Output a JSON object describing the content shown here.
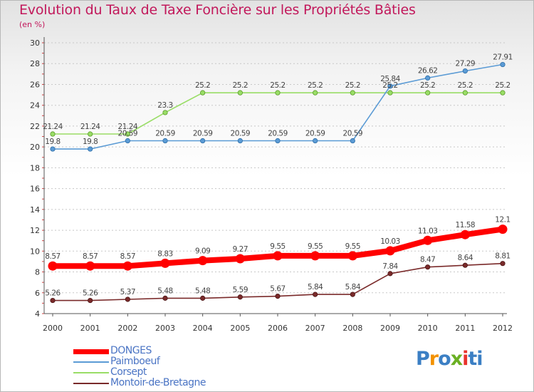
{
  "header": {
    "title": "Evolution du Taux de Taxe Foncière sur les Propriétés Bâties",
    "subtitle": "(en %)"
  },
  "brand": {
    "text": "Proxiti"
  },
  "chart_data": {
    "type": "line",
    "title": "Evolution du Taux de Taxe Foncière sur les Propriétés Bâties",
    "ylabel": "(en %)",
    "xlabel": "",
    "x": [
      "2000",
      "2001",
      "2002",
      "2003",
      "2004",
      "2005",
      "2006",
      "2007",
      "2008",
      "2009",
      "2010",
      "2011",
      "2012"
    ],
    "ylim": [
      4,
      30
    ],
    "yticks": [
      4,
      6,
      8,
      10,
      12,
      14,
      16,
      18,
      20,
      22,
      24,
      26,
      28,
      30
    ],
    "grid": "horizontal-dashed",
    "legend_position": "bottom-left",
    "series": [
      {
        "name": "DONGES",
        "color": "#ff0000",
        "values": [
          8.57,
          8.57,
          8.57,
          8.83,
          9.09,
          9.27,
          9.55,
          9.55,
          9.55,
          10.03,
          11.03,
          11.58,
          12.1
        ],
        "labels": [
          "8.57",
          "8.57",
          "8.57",
          "8.83",
          "9.09",
          "9.27",
          "9.55",
          "9.55",
          "9.55",
          "10.03",
          "11.03",
          "11.58",
          "12.1"
        ]
      },
      {
        "name": "Paimboeuf",
        "color": "#5b9bd5",
        "values": [
          19.8,
          19.8,
          20.59,
          20.59,
          20.59,
          20.59,
          20.59,
          20.59,
          20.59,
          25.84,
          26.62,
          27.29,
          27.91
        ],
        "labels": [
          "19.8",
          "19.8",
          "20.59",
          "20.59",
          "20.59",
          "20.59",
          "20.59",
          "20.59",
          "20.59",
          "25.84",
          "26.62",
          "27.29",
          "27.91"
        ]
      },
      {
        "name": "Corsept",
        "color": "#99dd66",
        "values": [
          21.24,
          21.24,
          21.24,
          23.3,
          25.2,
          25.2,
          25.2,
          25.2,
          25.2,
          25.2,
          25.2,
          25.2,
          25.2
        ],
        "labels": [
          "21.24",
          "21.24",
          "21.24",
          "23.3",
          "25.2",
          "25.2",
          "25.2",
          "25.2",
          "25.2",
          "25.2",
          "25.2",
          "25.2",
          "25.2"
        ]
      },
      {
        "name": "Montoir-de-Bretagne",
        "color": "#7a2a2a",
        "values": [
          5.26,
          5.26,
          5.37,
          5.48,
          5.48,
          5.59,
          5.67,
          5.84,
          5.84,
          7.84,
          8.47,
          8.64,
          8.81
        ],
        "labels": [
          "5.26",
          "5.26",
          "5.37",
          "5.48",
          "5.48",
          "5.59",
          "5.67",
          "5.84",
          "5.84",
          "7.84",
          "8.47",
          "8.64",
          "8.81"
        ]
      }
    ]
  }
}
